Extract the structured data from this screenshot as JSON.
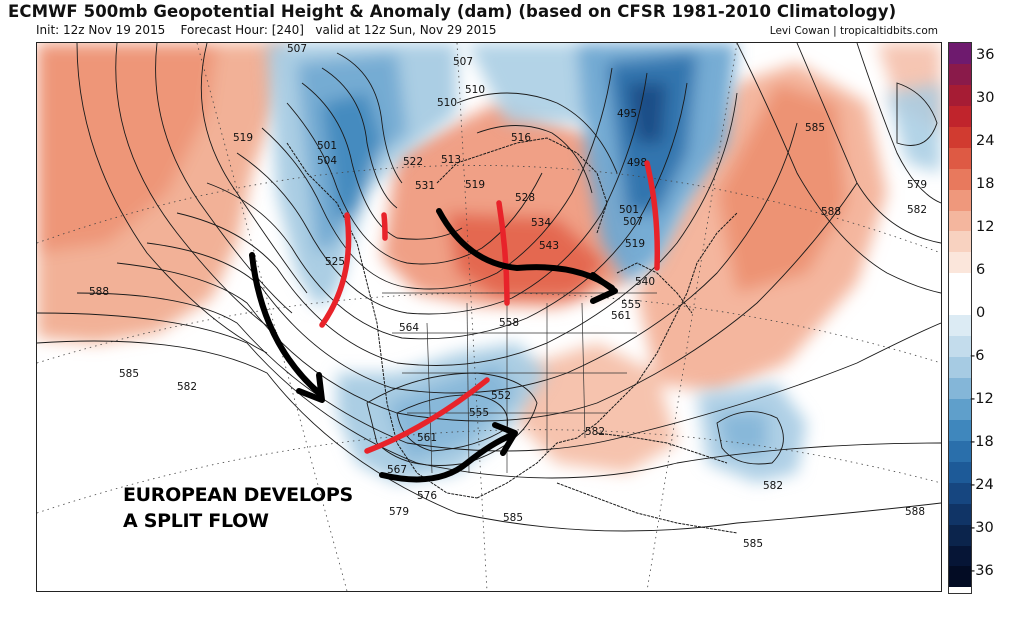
{
  "header": {
    "title": "ECMWF 500mb Geopotential Height & Anomaly (dam) (based on CFSR 1981-2010 Climatology)",
    "init": "Init: 12z Nov 19 2015",
    "forecast_hour": "Forecast Hour: [240]",
    "valid": "valid at 12z Sun, Nov 29 2015",
    "credit": "Levi Cowan | tropicaltidbits.com"
  },
  "annotation": {
    "line1": "EUROPEAN DEVELOPS",
    "line2": "A SPLIT FLOW"
  },
  "contour_labels": {
    "l588w": "588",
    "l585w": "585",
    "l582w": "582",
    "l519w": "519",
    "l501w": "501",
    "l504w": "504",
    "l507n": "507",
    "l507b": "507",
    "l510": "510",
    "l510b": "510",
    "l522": "522",
    "l513": "513",
    "l516": "516",
    "l531": "531",
    "l519c": "519",
    "l528": "528",
    "l543": "543",
    "l534": "534",
    "l498": "498",
    "l501e": "501",
    "l507e": "507",
    "l519e": "519",
    "l540": "540",
    "l555e": "555",
    "l561e": "561",
    "l525": "525",
    "l564": "564",
    "l558": "558",
    "l552": "552",
    "l555": "555",
    "l561": "561",
    "l567": "567",
    "l576": "576",
    "l579": "579",
    "l585s": "585",
    "l582se": "582",
    "l585se": "585",
    "l582c": "582",
    "l585e": "585",
    "l588e": "588",
    "l579e": "579",
    "l582e": "582",
    "l588se": "588",
    "l495": "495"
  },
  "colorbar": {
    "labels": [
      "36",
      "30",
      "24",
      "18",
      "12",
      "6",
      "0",
      "-6",
      "-12",
      "-18",
      "-24",
      "-30",
      "-36"
    ],
    "colors": [
      "#6e1a6e",
      "#8a1a4a",
      "#a61c34",
      "#c0242c",
      "#d13b30",
      "#de5a44",
      "#e8795d",
      "#ef987c",
      "#f4b69e",
      "#f8d2c0",
      "#fbe6db",
      "#ffffff",
      "#ffffff",
      "#dcebf4",
      "#c3dcec",
      "#a6cbe3",
      "#84b6d8",
      "#5f9fcb",
      "#3f87bd",
      "#2a6fab",
      "#1d5a98",
      "#164680",
      "#103466",
      "#0b244c",
      "#061536",
      "#030c24"
    ]
  },
  "colors": {
    "warm_anomaly": "#e8795d",
    "cold_anomaly": "#84b6d8",
    "arrow": "#000000",
    "trough_marker": "#e8232a"
  }
}
